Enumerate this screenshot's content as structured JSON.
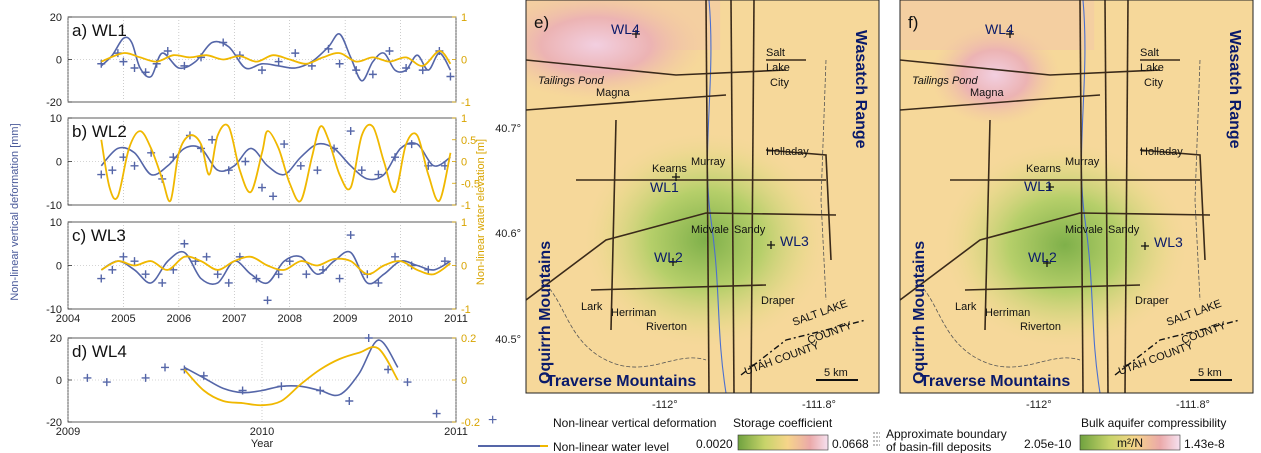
{
  "colors": {
    "deformation": "#5566a8",
    "water": "#f0b800",
    "axis_right": "#d8a400",
    "axis_left": "#4a5a9a"
  },
  "left_axis_label": "Non-linear vertical deformation [mm]",
  "right_axis_label": "Non-linear water elevation [m]",
  "chart_data": [
    {
      "type": "line",
      "title": "a) WL1",
      "xlim": [
        2004,
        2011
      ],
      "ylim": [
        -20,
        20
      ],
      "ylim_right": [
        -1,
        1
      ],
      "yticks": [
        "20",
        "0",
        "-20"
      ],
      "yticks_right": [
        "1",
        "0",
        "-1"
      ],
      "series": [
        {
          "name": "Non-linear vertical deformation",
          "kind": "markers",
          "x": [
            2004.6,
            2004.9,
            2005.0,
            2005.2,
            2005.4,
            2005.6,
            2005.8,
            2006.1,
            2006.4,
            2006.8,
            2007.1,
            2007.5,
            2007.8,
            2008.1,
            2008.4,
            2008.7,
            2008.9,
            2009.2,
            2009.5,
            2009.8,
            2010.1,
            2010.4,
            2010.7,
            2010.9
          ],
          "y": [
            -2,
            3,
            -1,
            -4,
            -6,
            -2,
            4,
            -3,
            1,
            8,
            2,
            -5,
            -1,
            3,
            -3,
            5,
            -2,
            -5,
            -7,
            4,
            -4,
            -5,
            4,
            -8
          ]
        },
        {
          "name": "Non-linear vertical deformation fit",
          "kind": "line",
          "x": [
            2004.6,
            2004.8,
            2005.0,
            2005.15,
            2005.3,
            2005.5,
            2005.7,
            2006.0,
            2006.3,
            2006.6,
            2006.9,
            2007.2,
            2007.5,
            2007.8,
            2008.1,
            2008.4,
            2008.7,
            2008.9,
            2009.1,
            2009.3,
            2009.5,
            2009.7,
            2009.9,
            2010.1,
            2010.3,
            2010.5,
            2010.7,
            2010.9
          ],
          "y": [
            -3,
            2,
            10,
            8,
            -4,
            -8,
            3,
            -4,
            -1,
            8,
            6,
            -4,
            -2,
            -3,
            -4,
            -1,
            6,
            12,
            1,
            -10,
            -1,
            3,
            -5,
            -5,
            2,
            -5,
            3,
            -5
          ]
        },
        {
          "name": "Non-linear water level",
          "kind": "line",
          "x": [
            2004.6,
            2005.0,
            2005.3,
            2005.6,
            2005.9,
            2006.2,
            2006.5,
            2006.8,
            2007.1,
            2007.4,
            2007.7,
            2008.0,
            2008.3,
            2008.6,
            2008.9,
            2009.2,
            2009.5,
            2009.8,
            2010.1,
            2010.4,
            2010.7,
            2010.9
          ],
          "y": [
            -0.05,
            0.15,
            0.05,
            -0.05,
            0.1,
            0.05,
            0.1,
            0.0,
            0.08,
            -0.05,
            0.1,
            0.0,
            -0.1,
            0.05,
            0.15,
            -0.05,
            0.05,
            -0.05,
            0.05,
            -0.15,
            0.2,
            -0.1
          ]
        }
      ]
    },
    {
      "type": "line",
      "title": "b) WL2",
      "xlim": [
        2004,
        2011
      ],
      "ylim": [
        -10,
        10
      ],
      "ylim_right": [
        -1,
        1
      ],
      "yticks": [
        "10",
        "0",
        "-10"
      ],
      "yticks_right": [
        "1",
        "0.5",
        "0",
        "-0.5",
        "-1"
      ],
      "series": [
        {
          "name": "Non-linear vertical deformation",
          "kind": "markers",
          "x": [
            2004.6,
            2004.8,
            2005.0,
            2005.2,
            2005.5,
            2005.7,
            2005.9,
            2006.2,
            2006.4,
            2006.6,
            2006.9,
            2007.2,
            2007.5,
            2007.7,
            2007.9,
            2008.2,
            2008.5,
            2008.8,
            2009.1,
            2009.3,
            2009.6,
            2009.9,
            2010.2,
            2010.5,
            2010.8
          ],
          "y": [
            -3,
            -2,
            1,
            -1,
            2,
            -4,
            1,
            6,
            3,
            5,
            -2,
            0,
            -6,
            -8,
            4,
            -1,
            -2,
            3,
            7,
            -2,
            -3,
            1,
            4,
            -1,
            -1
          ]
        },
        {
          "name": "Non-linear vertical deformation fit",
          "kind": "line",
          "x": [
            2004.6,
            2004.9,
            2005.2,
            2005.5,
            2005.8,
            2006.1,
            2006.4,
            2006.7,
            2007.0,
            2007.3,
            2007.6,
            2007.9,
            2008.2,
            2008.5,
            2008.8,
            2009.1,
            2009.4,
            2009.7,
            2010.0,
            2010.3,
            2010.6,
            2010.9
          ],
          "y": [
            -1,
            3,
            2,
            -3,
            -1,
            3,
            3,
            -2,
            -1,
            3,
            -1,
            -3,
            1,
            4,
            3,
            -1,
            -4,
            -3,
            3,
            4,
            -1,
            1
          ]
        },
        {
          "name": "Non-linear water level",
          "kind": "line",
          "x": [
            2004.6,
            2004.75,
            2004.9,
            2005.1,
            2005.3,
            2005.5,
            2005.7,
            2005.85,
            2006.0,
            2006.2,
            2006.4,
            2006.55,
            2006.7,
            2006.9,
            2007.1,
            2007.3,
            2007.5,
            2007.6,
            2007.8,
            2008.0,
            2008.2,
            2008.4,
            2008.55,
            2008.7,
            2008.9,
            2009.1,
            2009.3,
            2009.5,
            2009.7,
            2009.9,
            2010.1,
            2010.3,
            2010.5,
            2010.7,
            2010.9
          ],
          "y": [
            0.5,
            -0.6,
            -0.8,
            0.3,
            0.7,
            0.3,
            -0.4,
            -0.9,
            0.2,
            0.6,
            0.4,
            -0.3,
            0.6,
            0.8,
            -0.2,
            -0.7,
            0.2,
            0.7,
            0.3,
            -0.5,
            -0.9,
            0.1,
            0.8,
            0.5,
            -0.3,
            -0.6,
            0.6,
            0.8,
            0.0,
            -0.7,
            0.4,
            0.6,
            -0.3,
            -0.9,
            0.2
          ]
        }
      ]
    },
    {
      "type": "line",
      "title": "c) WL3",
      "xlim": [
        2004,
        2011
      ],
      "ylim": [
        -10,
        10
      ],
      "ylim_right": [
        -1,
        1
      ],
      "yticks": [
        "10",
        "0",
        "-10"
      ],
      "yticks_right": [
        "1",
        "0",
        "-1"
      ],
      "series": [
        {
          "name": "Non-linear vertical deformation",
          "kind": "markers",
          "x": [
            2004.6,
            2004.8,
            2005.0,
            2005.2,
            2005.4,
            2005.7,
            2005.9,
            2006.1,
            2006.3,
            2006.5,
            2006.7,
            2006.9,
            2007.1,
            2007.4,
            2007.6,
            2007.8,
            2008.0,
            2008.3,
            2008.6,
            2008.9,
            2009.1,
            2009.4,
            2009.6,
            2009.9,
            2010.2,
            2010.5,
            2010.8
          ],
          "y": [
            -3,
            -1,
            2,
            1,
            -2,
            -4,
            -1,
            5,
            1,
            2,
            -2,
            -4,
            2,
            -3,
            -8,
            -2,
            1,
            -2,
            -1,
            -3,
            7,
            -2,
            -4,
            2,
            0,
            -1,
            1
          ]
        },
        {
          "name": "Non-linear vertical deformation fit",
          "kind": "line",
          "x": [
            2004.6,
            2004.9,
            2005.2,
            2005.5,
            2005.8,
            2006.1,
            2006.4,
            2006.7,
            2007.0,
            2007.3,
            2007.6,
            2007.9,
            2008.2,
            2008.5,
            2008.8,
            2009.1,
            2009.4,
            2009.7,
            2010.0,
            2010.3,
            2010.6,
            2010.9
          ],
          "y": [
            -1,
            1,
            -1,
            -4,
            1,
            3,
            -3,
            -4,
            1,
            -2,
            -4,
            1,
            2,
            -2,
            1,
            3,
            -4,
            -2,
            1,
            0,
            -1,
            1
          ]
        },
        {
          "name": "Non-linear water level",
          "kind": "line",
          "x": [
            2004.6,
            2004.9,
            2005.2,
            2005.5,
            2005.8,
            2006.1,
            2006.4,
            2006.7,
            2007.0,
            2007.3,
            2007.6,
            2007.9,
            2008.2,
            2008.5,
            2008.8,
            2009.1,
            2009.4,
            2009.7,
            2010.0,
            2010.3,
            2010.6,
            2010.9
          ],
          "y": [
            -0.1,
            0.1,
            0.0,
            0.1,
            -0.1,
            0.2,
            0.1,
            -0.1,
            0.1,
            0.2,
            0.0,
            -0.1,
            0.1,
            0.0,
            0.15,
            0.1,
            -0.2,
            0.0,
            0.1,
            -0.1,
            -0.2,
            0.05
          ]
        }
      ]
    },
    {
      "type": "line",
      "title": "d) WL4",
      "xlim": [
        2009,
        2011
      ],
      "ylim": [
        -20,
        20
      ],
      "ylim_right": [
        -0.2,
        0.2
      ],
      "yticks": [
        "20",
        "0",
        "-20"
      ],
      "yticks_right": [
        "0.2",
        "0",
        "-0.2"
      ],
      "xticks": [
        "2009",
        "2010",
        "2011"
      ],
      "xlabel": "Year",
      "series": [
        {
          "name": "Non-linear vertical deformation",
          "kind": "markers",
          "x": [
            2009.1,
            2009.2,
            2009.4,
            2009.5,
            2009.6,
            2009.7,
            2009.9,
            2010.1,
            2010.3,
            2010.45,
            2010.55,
            2010.65,
            2010.75,
            2010.9
          ],
          "y": [
            1,
            -1,
            1,
            6,
            5,
            2,
            -5,
            -3,
            -5,
            -10,
            20,
            5,
            -1,
            -16
          ]
        },
        {
          "name": "Non-linear vertical deformation fit",
          "kind": "line",
          "x": [
            2009.6,
            2009.7,
            2009.8,
            2009.9,
            2010.0,
            2010.1,
            2010.2,
            2010.3,
            2010.4,
            2010.5,
            2010.6,
            2010.7
          ],
          "y": [
            6,
            1,
            -4,
            -6,
            -5,
            -3,
            -3,
            -5,
            -7,
            3,
            19,
            6
          ]
        },
        {
          "name": "Non-linear water level",
          "kind": "line",
          "x": [
            2009.6,
            2009.7,
            2009.8,
            2009.9,
            2010.0,
            2010.1,
            2010.2,
            2010.3,
            2010.4,
            2010.5,
            2010.6,
            2010.7
          ],
          "y": [
            0.05,
            -0.05,
            -0.1,
            -0.11,
            -0.12,
            -0.1,
            -0.02,
            0.05,
            0.1,
            0.13,
            0.15,
            0.0
          ]
        }
      ]
    }
  ],
  "xticks_abc": [
    "2004",
    "2005",
    "2006",
    "2007",
    "2008",
    "2009",
    "2010",
    "2011"
  ],
  "maps": [
    {
      "panel": "e)",
      "colorbar_title": "Storage coefficient",
      "cb_min": "0.0020",
      "cb_max": "0.0668",
      "cb_unit": ""
    },
    {
      "panel": "f)",
      "colorbar_title": "Bulk aquifer compressibility",
      "cb_min": "2.05e-10",
      "cb_max": "1.43e-8",
      "cb_unit": "m²/N"
    }
  ],
  "map_labels": {
    "wells": [
      "WL1",
      "WL2",
      "WL3",
      "WL4"
    ],
    "cities": [
      "Salt",
      "Lake",
      "City",
      "Magna",
      "Holladay",
      "Kearns",
      "Murray",
      "Midvale",
      "Sandy",
      "Lark",
      "Herriman",
      "Riverton",
      "Draper"
    ],
    "tailings": "Tailings Pond",
    "wasatch": "Wasatch Range",
    "oquirrh": "Oquirrh Mountains",
    "traverse": "Traverse Mountains",
    "county1": "SALT LAKE",
    "county2": "COUNTY",
    "county3": "UTAH COUNTY",
    "scale": "5 km",
    "lat_ticks": [
      "40.7°",
      "40.6°",
      "40.5°"
    ],
    "lon_ticks": [
      "-112°",
      "-111.8°"
    ]
  },
  "legend": {
    "deformation": "Non-linear vertical deformation",
    "water": "Non-linear water level",
    "boundary1": "Approximate boundary",
    "boundary2": "of basin-fill deposits"
  }
}
